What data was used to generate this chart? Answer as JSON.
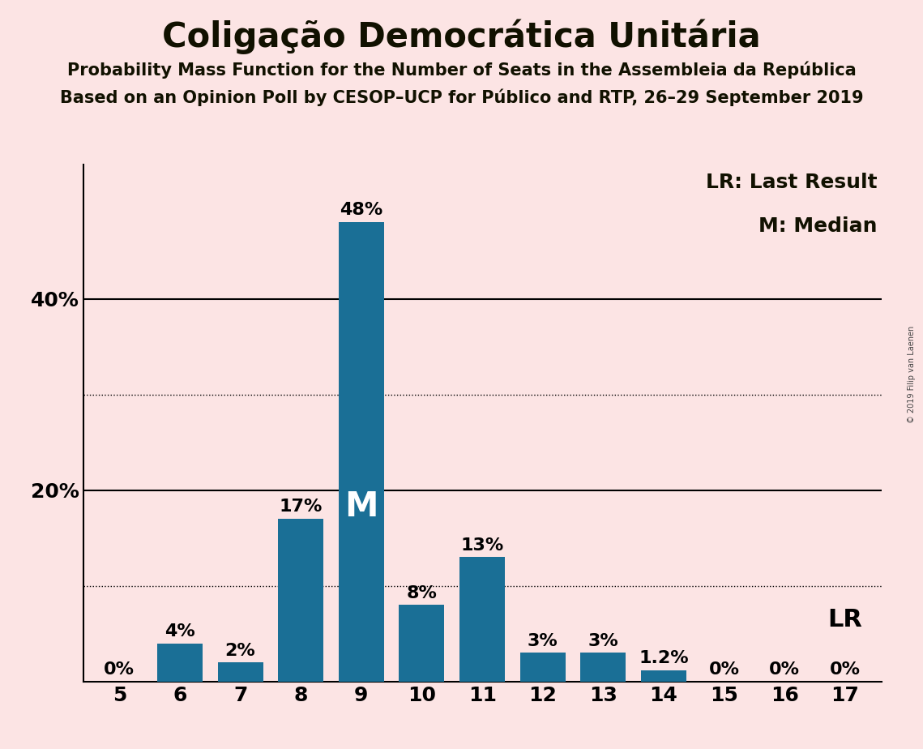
{
  "title": "Coligação Democrática Unitária",
  "subtitle1": "Probability Mass Function for the Number of Seats in the Assembleia da República",
  "subtitle2": "Based on an Opinion Poll by CESOP–UCP for Público and RTP, 26–29 September 2019",
  "copyright": "© 2019 Filip van Laenen",
  "background_color": "#fce4e4",
  "bar_color": "#1a6f96",
  "categories": [
    5,
    6,
    7,
    8,
    9,
    10,
    11,
    12,
    13,
    14,
    15,
    16,
    17
  ],
  "values": [
    0,
    4,
    2,
    17,
    48,
    8,
    13,
    3,
    3,
    1.2,
    0,
    0,
    0
  ],
  "labels": [
    "0%",
    "4%",
    "2%",
    "17%",
    "48%",
    "8%",
    "13%",
    "3%",
    "3%",
    "1.2%",
    "0%",
    "0%",
    "0%"
  ],
  "median_bar": 9,
  "median_label": "M",
  "lr_bar": 17,
  "lr_label": "LR",
  "shown_yticks": [
    20,
    40
  ],
  "dotted_yticks": [
    10,
    30
  ],
  "ylim": [
    0,
    54
  ],
  "legend_lr": "LR: Last Result",
  "legend_m": "M: Median",
  "title_fontsize": 30,
  "subtitle_fontsize": 15,
  "bar_label_fontsize": 16,
  "axis_label_fontsize": 18,
  "legend_fontsize": 18,
  "median_label_fontsize": 30,
  "lr_inline_fontsize": 22
}
